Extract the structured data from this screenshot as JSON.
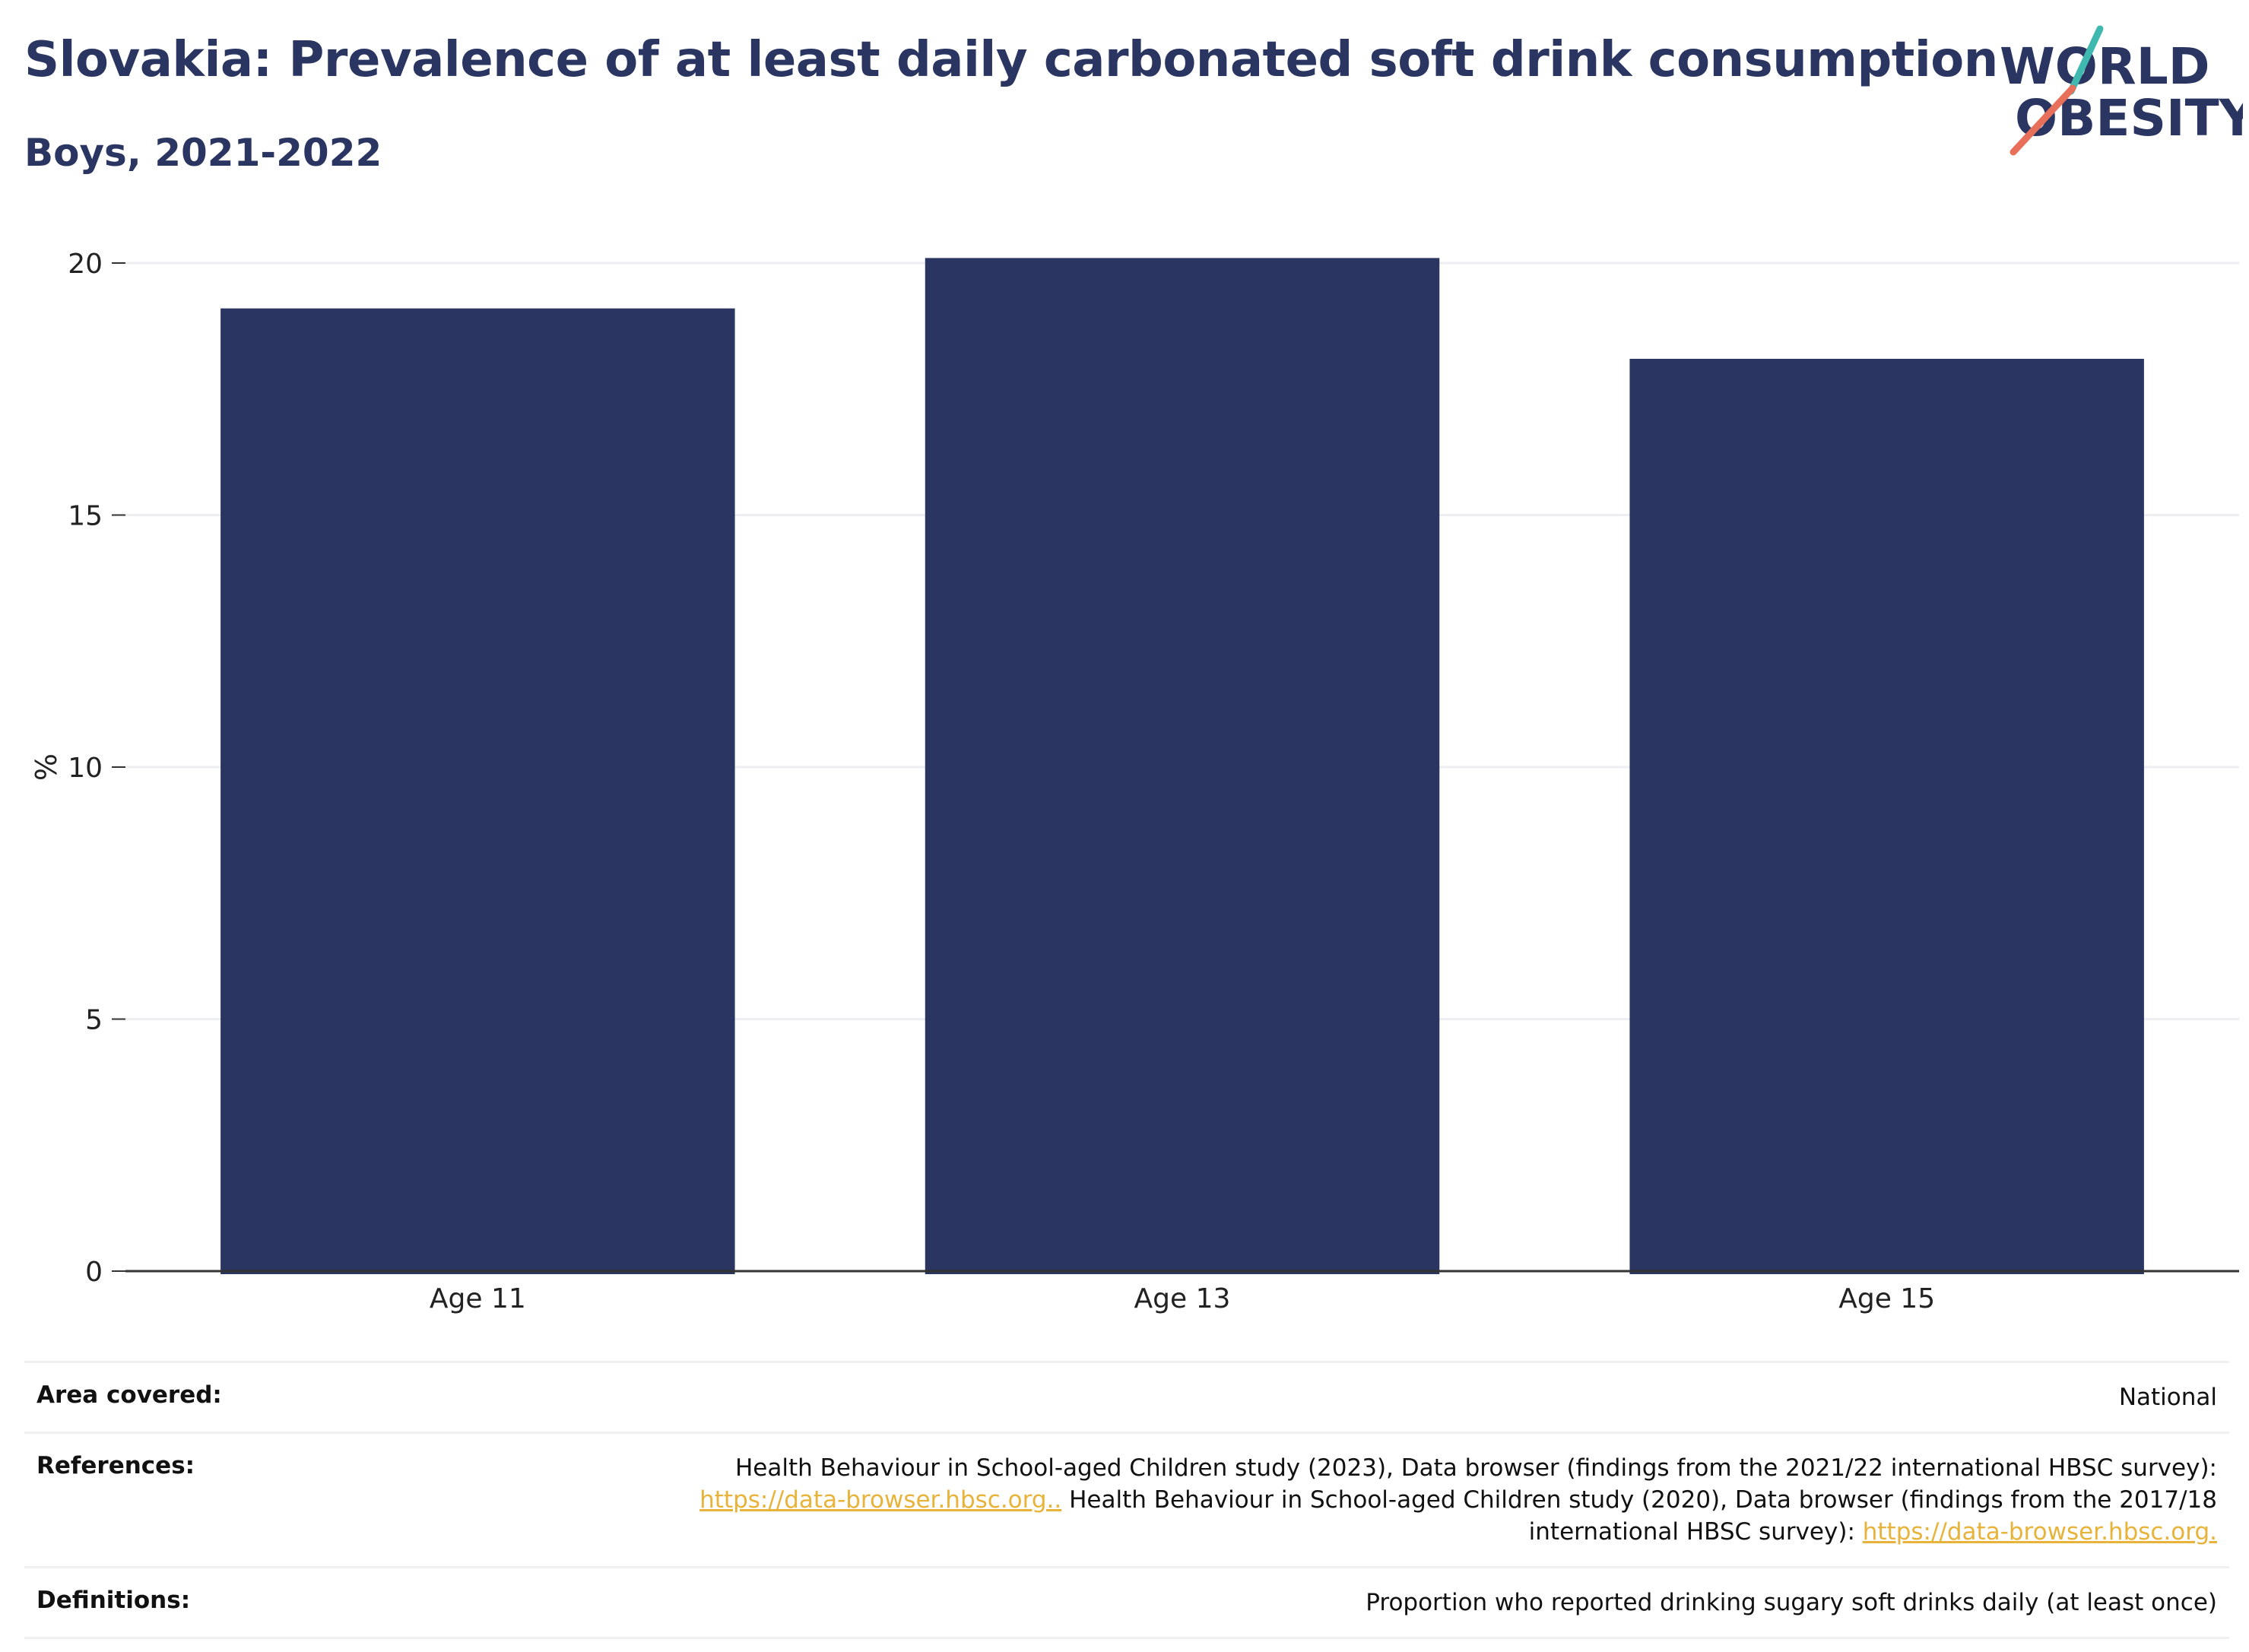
{
  "header": {
    "title": "Slovakia: Prevalence of at least daily carbonated soft drink consumption",
    "subtitle": "Boys, 2021-2022"
  },
  "logo": {
    "line1": "WORLD",
    "line2": "OBESITY",
    "icon": "world-obesity-logo",
    "accent_teal": "#3fb8b0",
    "accent_red": "#e8705a"
  },
  "colors": {
    "bar": "#2a3661",
    "text": "#2a3661",
    "grid": "#eceef1",
    "link": "#e8b33a"
  },
  "chart_data": {
    "type": "bar",
    "categories": [
      "Age 11",
      "Age 13",
      "Age 15"
    ],
    "values": [
      19.1,
      20.1,
      18.1
    ],
    "title": "Slovakia: Prevalence of at least daily carbonated soft drink consumption",
    "subtitle": "Boys, 2021-2022",
    "xlabel": "",
    "ylabel": "%",
    "ylim": [
      0,
      20
    ],
    "yticks": [
      0,
      5,
      10,
      15,
      20
    ],
    "grid": true,
    "legend": "none"
  },
  "meta": {
    "area_label": "Area covered:",
    "area_value": "National",
    "ref_label": "References:",
    "ref_text1": "Health Behaviour in School-aged Children study (2023), Data browser (findings from the 2021/22 international HBSC survey):",
    "ref_link1": "https://data-browser.hbsc.org..",
    "ref_text2": " Health Behaviour in School-aged Children study (2020), Data browser (findings from the 2017/18",
    "ref_text3": "international HBSC survey): ",
    "ref_link2": "https://data-browser.hbsc.org.",
    "def_label": "Definitions:",
    "def_value": "Proportion who reported drinking sugary soft drinks daily (at least once)"
  }
}
